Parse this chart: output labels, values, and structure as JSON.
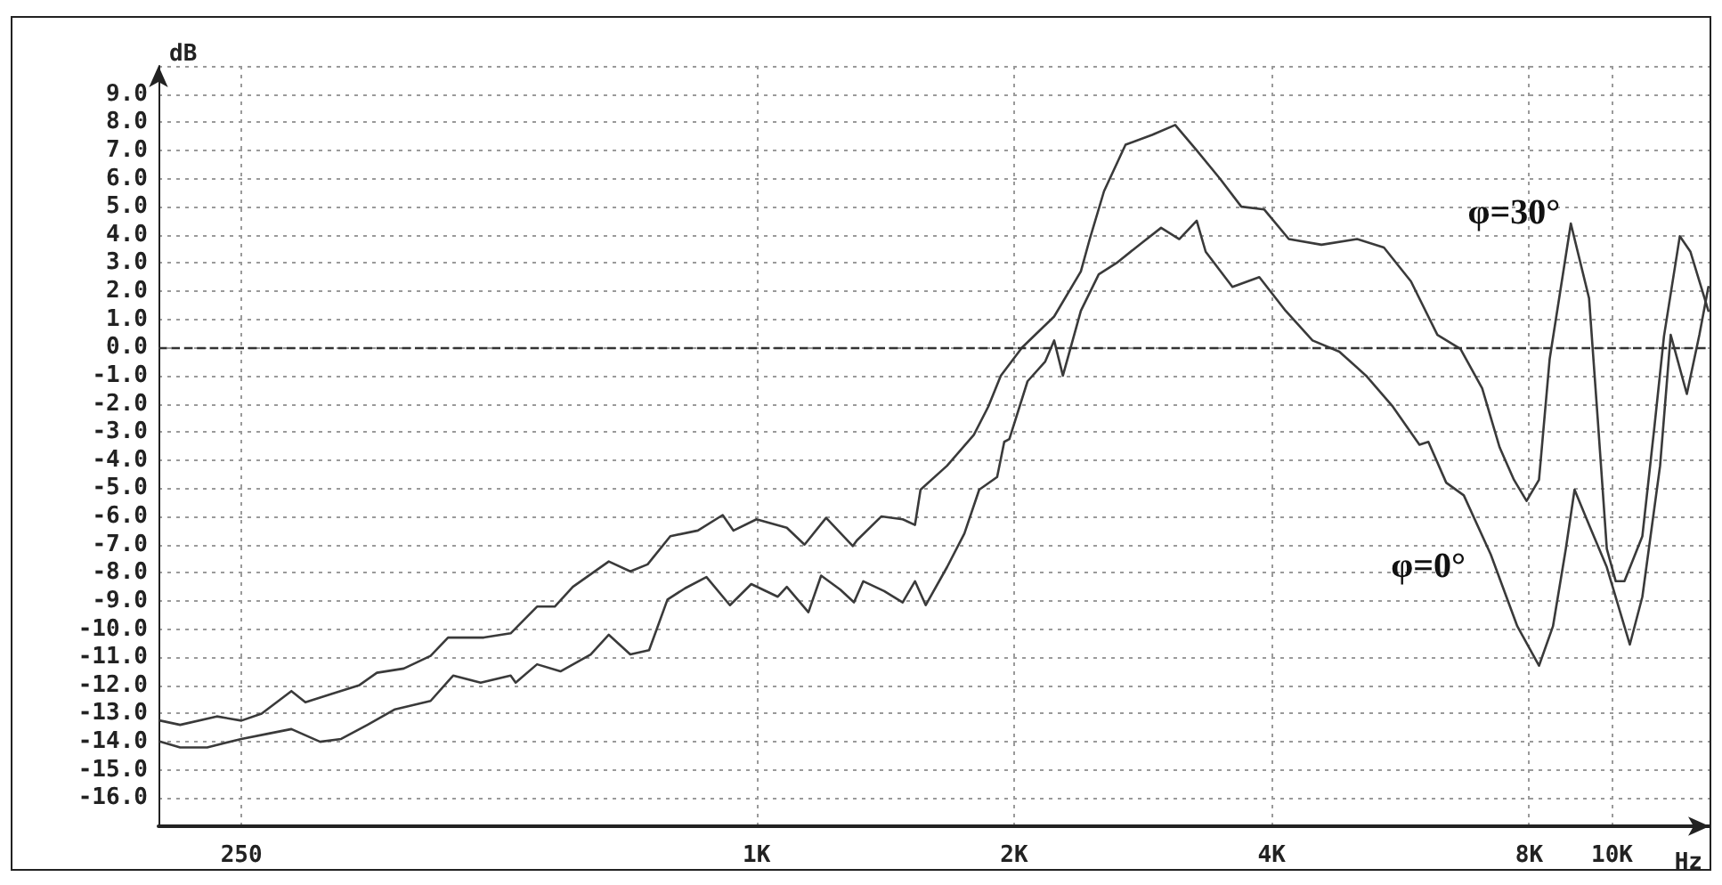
{
  "chart_data": {
    "type": "line",
    "xlabel": "Hz",
    "ylabel": "dB",
    "log": "x",
    "grid": true,
    "legend": false,
    "marker": "none",
    "line_style": "solid",
    "xlim": [
      200,
      13000
    ],
    "xticks": [
      {
        "value": 250,
        "label": "250"
      },
      {
        "value": 1000,
        "label": "1K"
      },
      {
        "value": 2000,
        "label": "2K"
      },
      {
        "value": 4000,
        "label": "4K"
      },
      {
        "value": 8000,
        "label": "8K"
      },
      {
        "value": 10000,
        "label": "10K"
      }
    ],
    "ylim": [
      -17,
      10
    ],
    "yticks": [
      {
        "value": -16,
        "label": "-16.0"
      },
      {
        "value": -15,
        "label": "-15.0"
      },
      {
        "value": -14,
        "label": "-14.0"
      },
      {
        "value": -13,
        "label": "-13.0"
      },
      {
        "value": -12,
        "label": "-12.0"
      },
      {
        "value": -11,
        "label": "-11.0"
      },
      {
        "value": -10,
        "label": "-10.0"
      },
      {
        "value": -9,
        "label": "-9.0"
      },
      {
        "value": -8,
        "label": "-8.0"
      },
      {
        "value": -7,
        "label": "-7.0"
      },
      {
        "value": -6,
        "label": "-6.0"
      },
      {
        "value": -5,
        "label": "-5.0"
      },
      {
        "value": -4,
        "label": "-4.0"
      },
      {
        "value": -3,
        "label": "-3.0"
      },
      {
        "value": -2,
        "label": "-2.0"
      },
      {
        "value": -1,
        "label": "-1.0"
      },
      {
        "value": 0,
        "label": "0.0"
      },
      {
        "value": 1,
        "label": "1.0"
      },
      {
        "value": 2,
        "label": "2.0"
      },
      {
        "value": 3,
        "label": "3.0"
      },
      {
        "value": 4,
        "label": "4.0"
      },
      {
        "value": 5,
        "label": "5.0"
      },
      {
        "value": 6,
        "label": "6.0"
      },
      {
        "value": 7,
        "label": "7.0"
      },
      {
        "value": 8,
        "label": "8.0"
      },
      {
        "value": 9,
        "label": "9.0"
      },
      {
        "value": 10,
        "label": null
      }
    ],
    "ref_lines": [
      {
        "axis": "y",
        "value": 0,
        "color": "#333333",
        "line_style": "dashed"
      }
    ],
    "series": [
      {
        "name": "φ=30°",
        "color": "#3a3a3a",
        "x": [
          201,
          212,
          234,
          250,
          264,
          286,
          297,
          319,
          343,
          360,
          387,
          416,
          436,
          480,
          516,
          554,
          581,
          610,
          672,
          712,
          746,
          793,
          854,
          913,
          940,
          1000,
          1085,
          1138,
          1206,
          1296,
          1310,
          1399,
          1482,
          1532,
          1555,
          1670,
          1795,
          1866,
          1930,
          2044,
          2228,
          2394,
          2452,
          2548,
          2700,
          2900,
          3086,
          3270,
          3480,
          3687,
          3922,
          4190,
          4575,
          5035,
          5412,
          5820,
          6250,
          6650,
          7050,
          7390,
          7680,
          7945,
          8215,
          8455,
          8950,
          9400,
          9620,
          9860,
          10100,
          10340,
          10850,
          11200,
          11500,
          12000,
          12350,
          12650,
          12960
        ],
        "values": [
          -13.25,
          -13.4,
          -13.1,
          -13.25,
          -13.0,
          -12.2,
          -12.6,
          -12.3,
          -12.0,
          -11.55,
          -11.4,
          -10.95,
          -10.3,
          -10.3,
          -10.15,
          -9.2,
          -9.2,
          -8.5,
          -7.6,
          -7.95,
          -7.7,
          -6.7,
          -6.5,
          -5.95,
          -6.5,
          -6.1,
          -6.4,
          -7.0,
          -6.05,
          -7.05,
          -6.85,
          -6.0,
          -6.1,
          -6.3,
          -5.05,
          -4.2,
          -3.1,
          -2.1,
          -1.0,
          0.0,
          1.1,
          2.7,
          3.85,
          5.55,
          7.2,
          7.55,
          7.9,
          7.0,
          6.0,
          5.0,
          4.9,
          3.85,
          3.65,
          3.85,
          3.55,
          2.35,
          0.45,
          -0.05,
          -1.45,
          -3.55,
          -4.7,
          -5.45,
          -4.7,
          -0.4,
          4.4,
          1.75,
          -2.5,
          -7.15,
          -8.3,
          -8.3,
          -6.7,
          -2.9,
          0.4,
          3.95,
          3.4,
          2.35,
          1.3
        ]
      },
      {
        "name": "φ=0°",
        "color": "#3a3a3a",
        "x": [
          201,
          212,
          228,
          250,
          270,
          286,
          309,
          327,
          351,
          378,
          416,
          442,
          476,
          516,
          523,
          554,
          590,
          640,
          672,
          712,
          749,
          787,
          825,
          874,
          931,
          986,
          1059,
          1085,
          1150,
          1190,
          1253,
          1300,
          1333,
          1410,
          1482,
          1532,
          1577,
          1670,
          1750,
          1821,
          1911,
          1948,
          1975,
          2074,
          2175,
          2228,
          2281,
          2394,
          2512,
          2635,
          2830,
          2971,
          3120,
          3270,
          3350,
          3600,
          3870,
          4155,
          4466,
          4800,
          5158,
          5543,
          5955,
          6100,
          6400,
          6710,
          7215,
          7750,
          8215,
          8530,
          8830,
          9040,
          9400,
          9860,
          10490,
          10850,
          11380,
          11710,
          12230,
          12650,
          12960
        ],
        "values": [
          -14.0,
          -14.2,
          -14.2,
          -13.9,
          -13.7,
          -13.55,
          -14.0,
          -13.9,
          -13.4,
          -12.85,
          -12.55,
          -11.65,
          -11.9,
          -11.65,
          -11.9,
          -11.25,
          -11.5,
          -10.9,
          -10.2,
          -10.9,
          -10.75,
          -8.95,
          -8.55,
          -8.15,
          -9.15,
          -8.4,
          -8.85,
          -8.5,
          -9.4,
          -8.1,
          -8.6,
          -9.05,
          -8.3,
          -8.65,
          -9.05,
          -8.3,
          -9.15,
          -7.8,
          -6.6,
          -5.05,
          -4.6,
          -3.35,
          -3.25,
          -1.2,
          -0.5,
          0.25,
          -1.0,
          1.3,
          2.6,
          3.0,
          3.75,
          4.25,
          3.85,
          4.5,
          3.4,
          2.15,
          2.5,
          1.3,
          0.25,
          -0.15,
          -1.0,
          -2.1,
          -3.45,
          -3.35,
          -4.8,
          -5.25,
          -7.35,
          -9.9,
          -11.3,
          -9.9,
          -7.15,
          -5.05,
          -6.3,
          -7.8,
          -10.55,
          -8.85,
          -4.2,
          0.45,
          -1.65,
          0.45,
          2.15
        ]
      }
    ]
  }
}
